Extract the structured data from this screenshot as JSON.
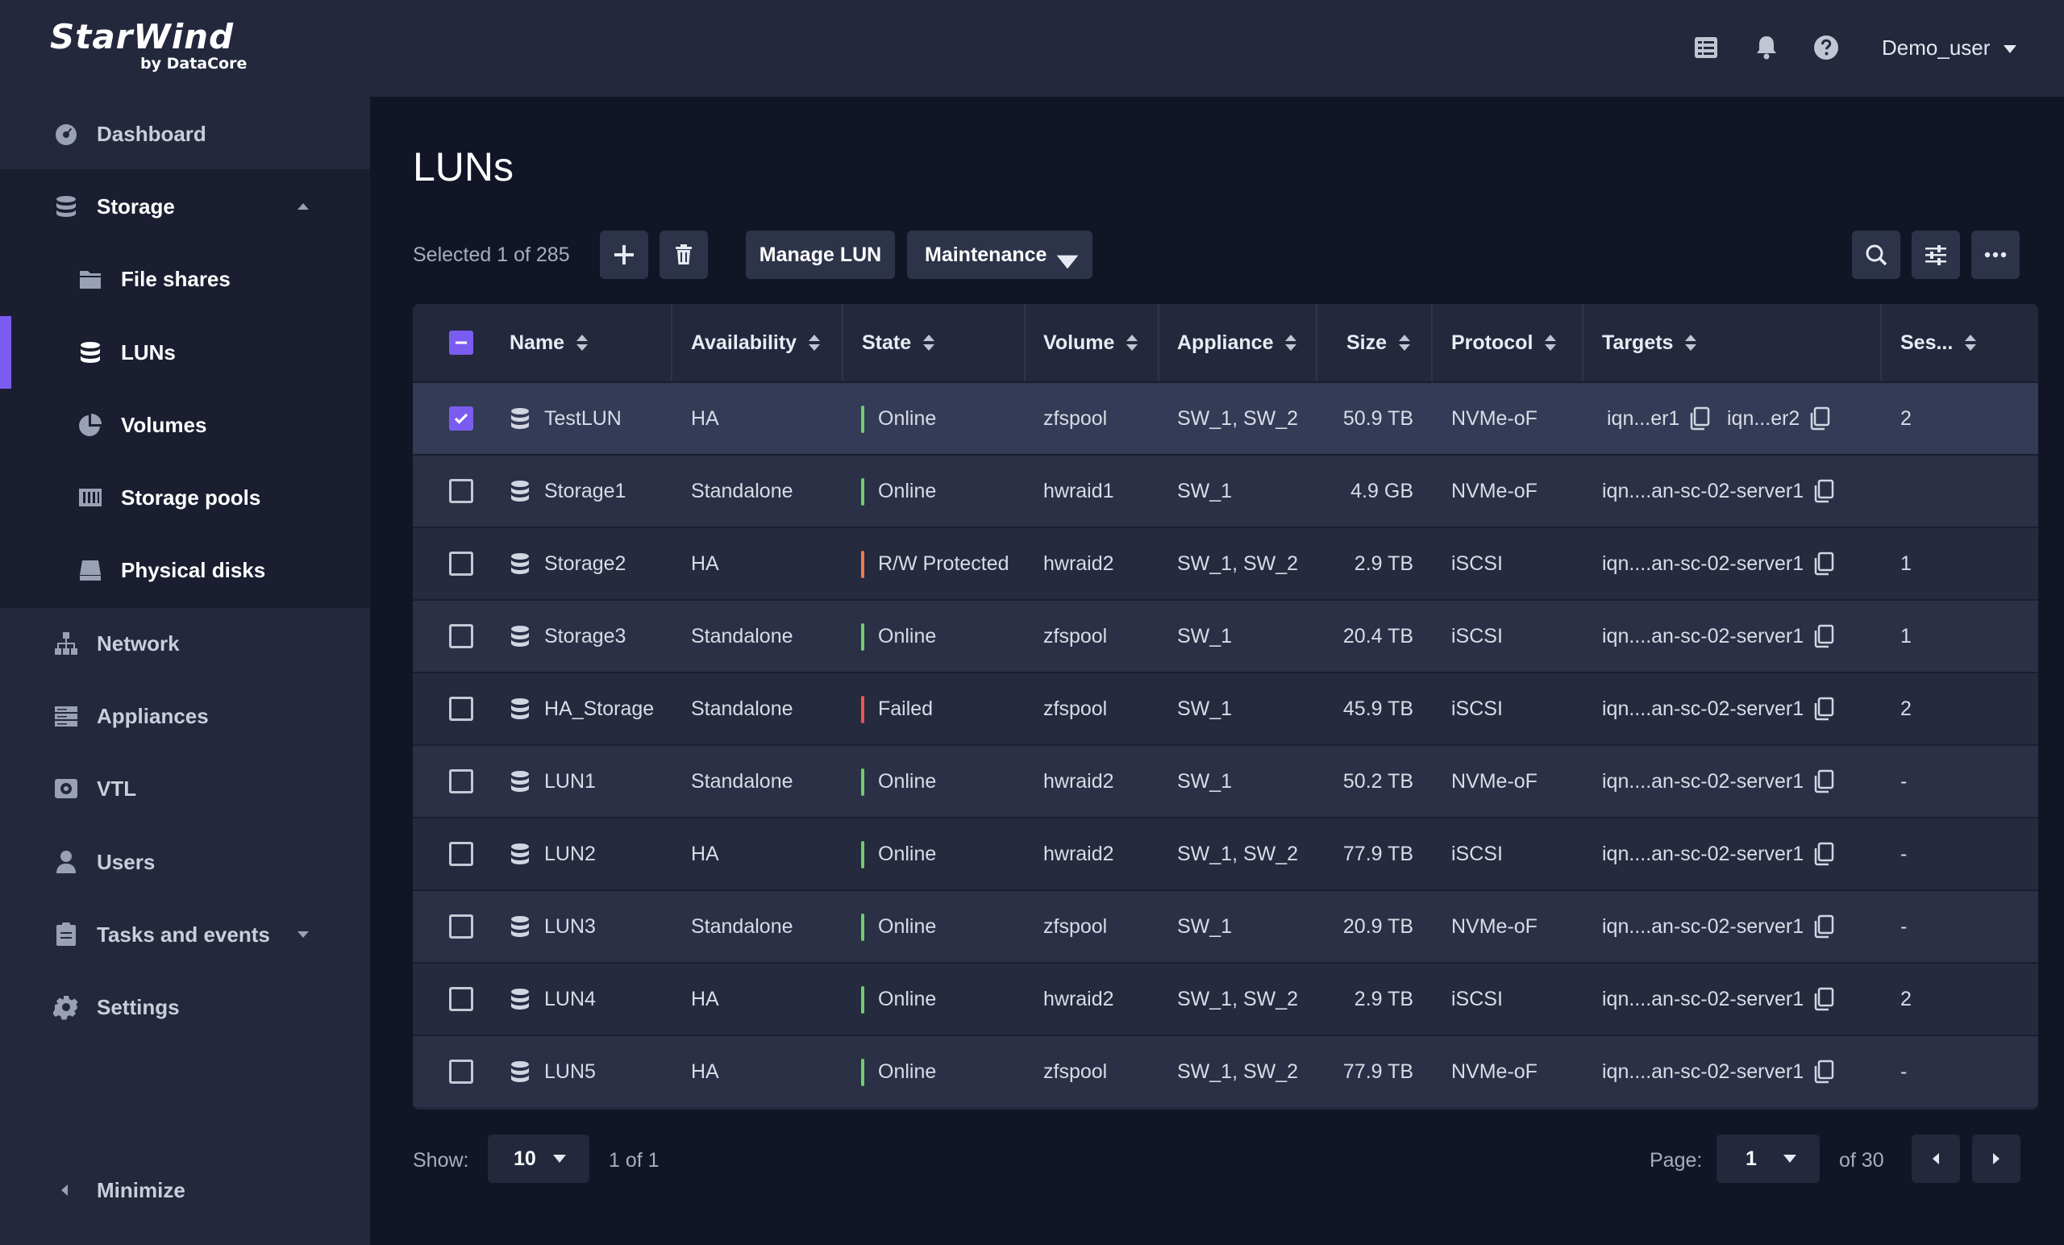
{
  "logo": {
    "main": "StarWind",
    "sub": "by DataCore"
  },
  "sidebar": {
    "items": [
      {
        "label": "Dashboard",
        "icon": "dashboard-icon"
      },
      {
        "label": "Storage",
        "icon": "storage-icon"
      },
      {
        "label": "File shares",
        "icon": "folder-icon"
      },
      {
        "label": "LUNs",
        "icon": "lun-icon"
      },
      {
        "label": "Volumes",
        "icon": "pie-icon"
      },
      {
        "label": "Storage pools",
        "icon": "pool-icon"
      },
      {
        "label": "Physical disks",
        "icon": "disk-icon"
      },
      {
        "label": "Network",
        "icon": "network-icon"
      },
      {
        "label": "Appliances",
        "icon": "appliances-icon"
      },
      {
        "label": "VTL",
        "icon": "tape-icon"
      },
      {
        "label": "Users",
        "icon": "user-icon"
      },
      {
        "label": "Tasks and events",
        "icon": "clipboard-icon"
      },
      {
        "label": "Settings",
        "icon": "gear-icon"
      }
    ],
    "minimize": "Minimize"
  },
  "header": {
    "user": "Demo_user"
  },
  "main": {
    "title": "LUNs",
    "selected_text": "Selected 1 of 285",
    "manage_label": "Manage LUN",
    "maintenance_label": "Maintenance"
  },
  "table": {
    "columns": [
      "Name",
      "Availability",
      "State",
      "Volume",
      "Appliance",
      "Size",
      "Protocol",
      "Targets",
      "Ses..."
    ],
    "rows": [
      {
        "name": "TestLUN",
        "availability": "HA",
        "state": "Online",
        "volume": "zfspool",
        "appliance": "SW_1, SW_2",
        "size": "50.9 TB",
        "protocol": "NVMe-oF",
        "target1": "iqn...er1",
        "target2": "iqn...er2",
        "sessions": "2",
        "checked": true
      },
      {
        "name": "Storage1",
        "availability": "Standalone",
        "state": "Online",
        "volume": "hwraid1",
        "appliance": "SW_1",
        "size": "4.9 GB",
        "protocol": "NVMe-oF",
        "target1": "iqn....an-sc-02-server1",
        "sessions": "",
        "checked": false
      },
      {
        "name": "Storage2",
        "availability": "HA",
        "state": "R/W Protected",
        "volume": "hwraid2",
        "appliance": "SW_1, SW_2",
        "size": "2.9 TB",
        "protocol": "iSCSI",
        "target1": "iqn....an-sc-02-server1",
        "sessions": "1",
        "checked": false
      },
      {
        "name": "Storage3",
        "availability": "Standalone",
        "state": "Online",
        "volume": "zfspool",
        "appliance": "SW_1",
        "size": "20.4 TB",
        "protocol": "iSCSI",
        "target1": "iqn....an-sc-02-server1",
        "sessions": "1",
        "checked": false
      },
      {
        "name": "HA_Storage",
        "availability": "Standalone",
        "state": "Failed",
        "volume": "zfspool",
        "appliance": "SW_1",
        "size": "45.9 TB",
        "protocol": "iSCSI",
        "target1": "iqn....an-sc-02-server1",
        "sessions": "2",
        "checked": false
      },
      {
        "name": "LUN1",
        "availability": "Standalone",
        "state": "Online",
        "volume": "hwraid2",
        "appliance": "SW_1",
        "size": "50.2 TB",
        "protocol": "NVMe-oF",
        "target1": "iqn....an-sc-02-server1",
        "sessions": "-",
        "checked": false
      },
      {
        "name": "LUN2",
        "availability": "HA",
        "state": "Online",
        "volume": "hwraid2",
        "appliance": "SW_1, SW_2",
        "size": "77.9 TB",
        "protocol": "iSCSI",
        "target1": "iqn....an-sc-02-server1",
        "sessions": "-",
        "checked": false
      },
      {
        "name": "LUN3",
        "availability": "Standalone",
        "state": "Online",
        "volume": "zfspool",
        "appliance": "SW_1",
        "size": "20.9 TB",
        "protocol": "NVMe-oF",
        "target1": "iqn....an-sc-02-server1",
        "sessions": "-",
        "checked": false
      },
      {
        "name": "LUN4",
        "availability": "HA",
        "state": "Online",
        "volume": "hwraid2",
        "appliance": "SW_1, SW_2",
        "size": "2.9 TB",
        "protocol": "iSCSI",
        "target1": "iqn....an-sc-02-server1",
        "sessions": "2",
        "checked": false
      },
      {
        "name": "LUN5",
        "availability": "HA",
        "state": "Online",
        "volume": "zfspool",
        "appliance": "SW_1, SW_2",
        "size": "77.9 TB",
        "protocol": "NVMe-oF",
        "target1": "iqn....an-sc-02-server1",
        "sessions": "-",
        "checked": false
      }
    ]
  },
  "state_colors": {
    "Online": "#6fcf6a",
    "R/W Protected": "#f07a4a",
    "Failed": "#f0554f"
  },
  "footer": {
    "show_label": "Show:",
    "page_size": "10",
    "range": "1 of 1",
    "page_label": "Page:",
    "page_value": "1",
    "page_of": "of 30"
  }
}
